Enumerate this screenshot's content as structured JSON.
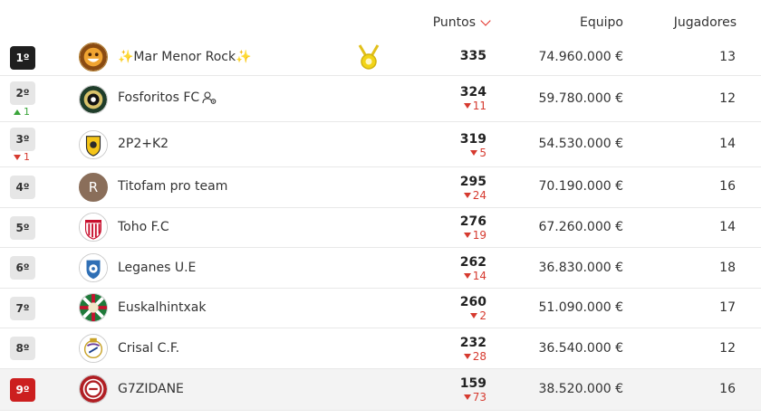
{
  "header": {
    "puntos_label": "Puntos",
    "equipo_label": "Equipo",
    "jugadores_label": "Jugadores"
  },
  "rows": [
    {
      "position": "1º",
      "change": "",
      "change_dir": "",
      "name": "✨Mar Menor Rock✨",
      "points": "335",
      "points_delta": "",
      "team_value": "74.960.000 €",
      "players": "13"
    },
    {
      "position": "2º",
      "change": "1",
      "change_dir": "up",
      "name": "Fosforitos FC",
      "points": "324",
      "points_delta": "11",
      "team_value": "59.780.000 €",
      "players": "12"
    },
    {
      "position": "3º",
      "change": "1",
      "change_dir": "down",
      "name": "2P2+K2",
      "points": "319",
      "points_delta": "5",
      "team_value": "54.530.000 €",
      "players": "14"
    },
    {
      "position": "4º",
      "change": "",
      "change_dir": "",
      "name": "Titofam pro team",
      "avatar_letter": "R",
      "points": "295",
      "points_delta": "24",
      "team_value": "70.190.000 €",
      "players": "16"
    },
    {
      "position": "5º",
      "change": "",
      "change_dir": "",
      "name": "Toho F.C",
      "points": "276",
      "points_delta": "19",
      "team_value": "67.260.000 €",
      "players": "14"
    },
    {
      "position": "6º",
      "change": "",
      "change_dir": "",
      "name": "Leganes U.E",
      "points": "262",
      "points_delta": "14",
      "team_value": "36.830.000 €",
      "players": "18"
    },
    {
      "position": "7º",
      "change": "",
      "change_dir": "",
      "name": "Euskalhintxak",
      "points": "260",
      "points_delta": "2",
      "team_value": "51.090.000 €",
      "players": "17"
    },
    {
      "position": "8º",
      "change": "",
      "change_dir": "",
      "name": "Crisal C.F.",
      "points": "232",
      "points_delta": "28",
      "team_value": "36.540.000 €",
      "players": "12"
    },
    {
      "position": "9º",
      "change": "",
      "change_dir": "",
      "name": "G7ZIDANE",
      "points": "159",
      "points_delta": "73",
      "team_value": "38.520.000 €",
      "players": "16"
    }
  ],
  "colors": {
    "accent_red": "#e0281f",
    "up_green": "#3aa53a",
    "down_red": "#d63a2f",
    "first_badge": "#1f1f1f",
    "last_badge": "#cc1f1f"
  },
  "icons": {
    "sort": "chevron-down-icon",
    "medal": "medal-icon",
    "settings": "gear-people-icon"
  }
}
